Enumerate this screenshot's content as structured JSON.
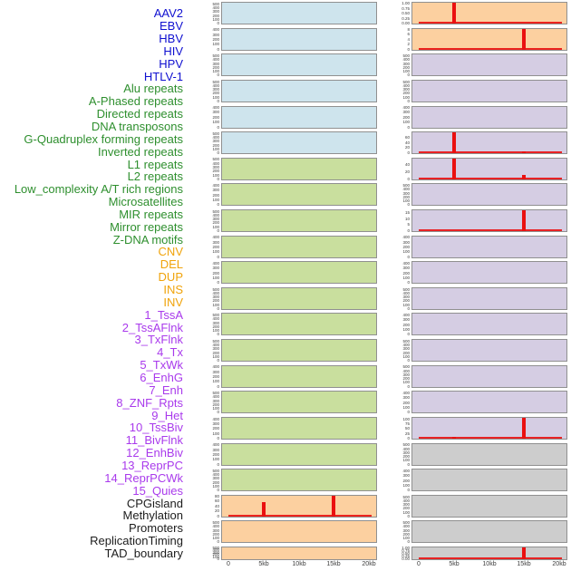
{
  "colors": {
    "label_virus": "#1010d0",
    "label_repeat": "#2e8f2e",
    "label_sv": "#f0a30a",
    "label_chromatin": "#a93aec",
    "label_other": "#1c1c1c",
    "fill_virus": "#cee4ed",
    "fill_repeat": "#c9df9e",
    "fill_sv": "#fcd0a0",
    "fill_chromatin": "#d5cde3",
    "fill_other": "#cdcdcd",
    "spike_red": "#ea1010",
    "panel_border": "#909090",
    "tick_text": "#3c3c3c"
  },
  "chart_data": {
    "type": "line",
    "description": "Two columns of 22 mini line panels; red signal is flat at 0 with spikes at 5kb and/or 15kb in some panels",
    "x_ticks": [
      "0",
      "5kb",
      "10kb",
      "15kb",
      "20kb"
    ],
    "x_range_kb": [
      0,
      20
    ],
    "columns": [
      {
        "panels": [
          {
            "feature": "AAV2",
            "category": "virus",
            "yticks": [
              "500",
              "400",
              "300",
              "200",
              "100",
              "0"
            ],
            "ylim": 540,
            "spikes": []
          },
          {
            "feature": "EBV",
            "category": "virus",
            "yticks": [
              "400",
              "300",
              "200",
              "100",
              "0"
            ],
            "ylim": 430,
            "spikes": []
          },
          {
            "feature": "HBV",
            "category": "virus",
            "yticks": [
              "500",
              "400",
              "300",
              "200",
              "100",
              "0"
            ],
            "ylim": 540,
            "spikes": []
          },
          {
            "feature": "HIV",
            "category": "virus",
            "yticks": [
              "500",
              "400",
              "300",
              "200",
              "100",
              "0"
            ],
            "ylim": 540,
            "spikes": []
          },
          {
            "feature": "HPV",
            "category": "virus",
            "yticks": [
              "400",
              "300",
              "200",
              "100",
              "0"
            ],
            "ylim": 430,
            "spikes": []
          },
          {
            "feature": "HTLV-1",
            "category": "virus",
            "yticks": [
              "500",
              "400",
              "300",
              "200",
              "100",
              "0"
            ],
            "ylim": 540,
            "spikes": []
          },
          {
            "feature": "Alu repeats",
            "category": "repeat",
            "yticks": [
              "500",
              "400",
              "300",
              "200",
              "100",
              "0"
            ],
            "ylim": 540,
            "spikes": []
          },
          {
            "feature": "A-Phased repeats",
            "category": "repeat",
            "yticks": [
              "400",
              "300",
              "200",
              "100",
              "0"
            ],
            "ylim": 430,
            "spikes": []
          },
          {
            "feature": "Directed repeats",
            "category": "repeat",
            "yticks": [
              "500",
              "400",
              "300",
              "200",
              "100",
              "0"
            ],
            "ylim": 540,
            "spikes": []
          },
          {
            "feature": "DNA transposons",
            "category": "repeat",
            "yticks": [
              "400",
              "300",
              "200",
              "100",
              "0"
            ],
            "ylim": 430,
            "spikes": []
          },
          {
            "feature": "G-Quadruplex forming repeats",
            "category": "repeat",
            "yticks": [
              "400",
              "300",
              "200",
              "100",
              "0"
            ],
            "ylim": 430,
            "spikes": []
          },
          {
            "feature": "Inverted repeats",
            "category": "repeat",
            "yticks": [
              "500",
              "400",
              "300",
              "200",
              "100",
              "0"
            ],
            "ylim": 540,
            "spikes": []
          },
          {
            "feature": "L1 repeats",
            "category": "repeat",
            "yticks": [
              "500",
              "400",
              "300",
              "200",
              "100",
              "0"
            ],
            "ylim": 540,
            "spikes": []
          },
          {
            "feature": "L2 repeats",
            "category": "repeat",
            "yticks": [
              "500",
              "400",
              "300",
              "200",
              "100",
              "0"
            ],
            "ylim": 540,
            "spikes": []
          },
          {
            "feature": "Low_complexity A/T rich regions",
            "category": "repeat",
            "yticks": [
              "400",
              "300",
              "200",
              "100",
              "0"
            ],
            "ylim": 430,
            "spikes": []
          },
          {
            "feature": "Microsatellites",
            "category": "repeat",
            "yticks": [
              "500",
              "400",
              "300",
              "200",
              "100",
              "0"
            ],
            "ylim": 540,
            "spikes": []
          },
          {
            "feature": "MIR repeats",
            "category": "repeat",
            "yticks": [
              "400",
              "300",
              "200",
              "100",
              "0"
            ],
            "ylim": 430,
            "spikes": []
          },
          {
            "feature": "Mirror repeats",
            "category": "repeat",
            "yticks": [
              "400",
              "300",
              "200",
              "100",
              "0"
            ],
            "ylim": 430,
            "spikes": []
          },
          {
            "feature": "Z-DNA motifs",
            "category": "repeat",
            "yticks": [
              "500",
              "400",
              "300",
              "200",
              "100",
              "0"
            ],
            "ylim": 540,
            "spikes": []
          },
          {
            "feature": "CNV",
            "category": "sv",
            "yticks": [
              "80",
              "60",
              "40",
              "20",
              "0"
            ],
            "ylim": 84,
            "spikes": [
              {
                "kb": 5,
                "value": 57
              },
              {
                "kb": 15,
                "value": 84
              }
            ]
          },
          {
            "feature": "DEL",
            "category": "sv",
            "yticks": [
              "500",
              "400",
              "300",
              "200",
              "100",
              "0"
            ],
            "ylim": 540,
            "spikes": []
          },
          {
            "feature": "DUP",
            "category": "sv",
            "yticks": [
              "500",
              "400",
              "300",
              "200",
              "100",
              "0"
            ],
            "ylim": 540,
            "spikes": []
          }
        ]
      },
      {
        "panels": [
          {
            "feature": "INS",
            "category": "sv",
            "yticks": [
              "1.00",
              "0.75",
              "0.50",
              "0.25",
              "0.00"
            ],
            "ylim": 1.05,
            "spikes": [
              {
                "kb": 5,
                "value": 1.05
              }
            ]
          },
          {
            "feature": "INV",
            "category": "sv",
            "yticks": [
              "8",
              "6",
              "4",
              "2",
              "0"
            ],
            "ylim": 8.4,
            "spikes": [
              {
                "kb": 15,
                "value": 8.4
              }
            ]
          },
          {
            "feature": "1_TssA",
            "category": "chromatin",
            "yticks": [
              "500",
              "400",
              "300",
              "200",
              "100",
              "0"
            ],
            "ylim": 540,
            "spikes": []
          },
          {
            "feature": "2_TssAFlnk",
            "category": "chromatin",
            "yticks": [
              "500",
              "400",
              "300",
              "200",
              "100",
              "0"
            ],
            "ylim": 540,
            "spikes": []
          },
          {
            "feature": "3_TxFlnk",
            "category": "chromatin",
            "yticks": [
              "400",
              "300",
              "200",
              "100",
              "0"
            ],
            "ylim": 430,
            "spikes": []
          },
          {
            "feature": "4_Tx",
            "category": "chromatin",
            "yticks": [
              "60",
              "40",
              "20",
              "0"
            ],
            "ylim": 80,
            "spikes": [
              {
                "kb": 5,
                "value": 80
              },
              {
                "kb": 15,
                "value": 5
              }
            ]
          },
          {
            "feature": "5_TxWk",
            "category": "chromatin",
            "yticks": [
              "40",
              "20",
              "0"
            ],
            "ylim": 58,
            "spikes": [
              {
                "kb": 5,
                "value": 58
              },
              {
                "kb": 15,
                "value": 12
              }
            ]
          },
          {
            "feature": "6_EnhG",
            "category": "chromatin",
            "yticks": [
              "500",
              "400",
              "300",
              "200",
              "100",
              "0"
            ],
            "ylim": 540,
            "spikes": []
          },
          {
            "feature": "7_Enh",
            "category": "chromatin",
            "yticks": [
              "15",
              "10",
              "5",
              "0"
            ],
            "ylim": 17.5,
            "spikes": [
              {
                "kb": 15,
                "value": 17.5
              }
            ]
          },
          {
            "feature": "8_ZNF_Rpts",
            "category": "chromatin",
            "yticks": [
              "400",
              "300",
              "200",
              "100",
              "0"
            ],
            "ylim": 430,
            "spikes": []
          },
          {
            "feature": "9_Het",
            "category": "chromatin",
            "yticks": [
              "400",
              "300",
              "200",
              "100",
              "0"
            ],
            "ylim": 430,
            "spikes": []
          },
          {
            "feature": "10_TssBiv",
            "category": "chromatin",
            "yticks": [
              "500",
              "400",
              "300",
              "200",
              "100",
              "0"
            ],
            "ylim": 540,
            "spikes": []
          },
          {
            "feature": "11_BivFlnk",
            "category": "chromatin",
            "yticks": [
              "400",
              "300",
              "200",
              "100",
              "0"
            ],
            "ylim": 430,
            "spikes": []
          },
          {
            "feature": "12_EnhBiv",
            "category": "chromatin",
            "yticks": [
              "500",
              "400",
              "300",
              "200",
              "100",
              "0"
            ],
            "ylim": 540,
            "spikes": []
          },
          {
            "feature": "13_ReprPC",
            "category": "chromatin",
            "yticks": [
              "500",
              "400",
              "300",
              "200",
              "100",
              "0"
            ],
            "ylim": 540,
            "spikes": []
          },
          {
            "feature": "14_ReprPCWk",
            "category": "chromatin",
            "yticks": [
              "400",
              "300",
              "200",
              "100",
              "0"
            ],
            "ylim": 430,
            "spikes": []
          },
          {
            "feature": "15_Quies",
            "category": "chromatin",
            "yticks": [
              "100",
              "75",
              "50",
              "25",
              "0"
            ],
            "ylim": 108,
            "spikes": [
              {
                "kb": 5,
                "value": 8
              },
              {
                "kb": 15,
                "value": 108
              }
            ]
          },
          {
            "feature": "CPGisland",
            "category": "other",
            "yticks": [
              "500",
              "400",
              "300",
              "200",
              "100",
              "0"
            ],
            "ylim": 540,
            "spikes": []
          },
          {
            "feature": "Methylation",
            "category": "other",
            "yticks": [
              "400",
              "300",
              "200",
              "100",
              "0"
            ],
            "ylim": 430,
            "spikes": []
          },
          {
            "feature": "Promoters",
            "category": "other",
            "yticks": [
              "500",
              "400",
              "300",
              "200",
              "100",
              "0"
            ],
            "ylim": 540,
            "spikes": []
          },
          {
            "feature": "ReplicationTiming",
            "category": "other",
            "yticks": [
              "500",
              "400",
              "300",
              "200",
              "100",
              "0"
            ],
            "ylim": 540,
            "spikes": []
          },
          {
            "feature": "TAD_boundary",
            "category": "other",
            "yticks": [
              "1.00",
              "0.75",
              "0.50",
              "0.25",
              "0.00"
            ],
            "ylim": 1.05,
            "spikes": [
              {
                "kb": 15,
                "value": 1.05
              }
            ]
          }
        ]
      }
    ]
  }
}
